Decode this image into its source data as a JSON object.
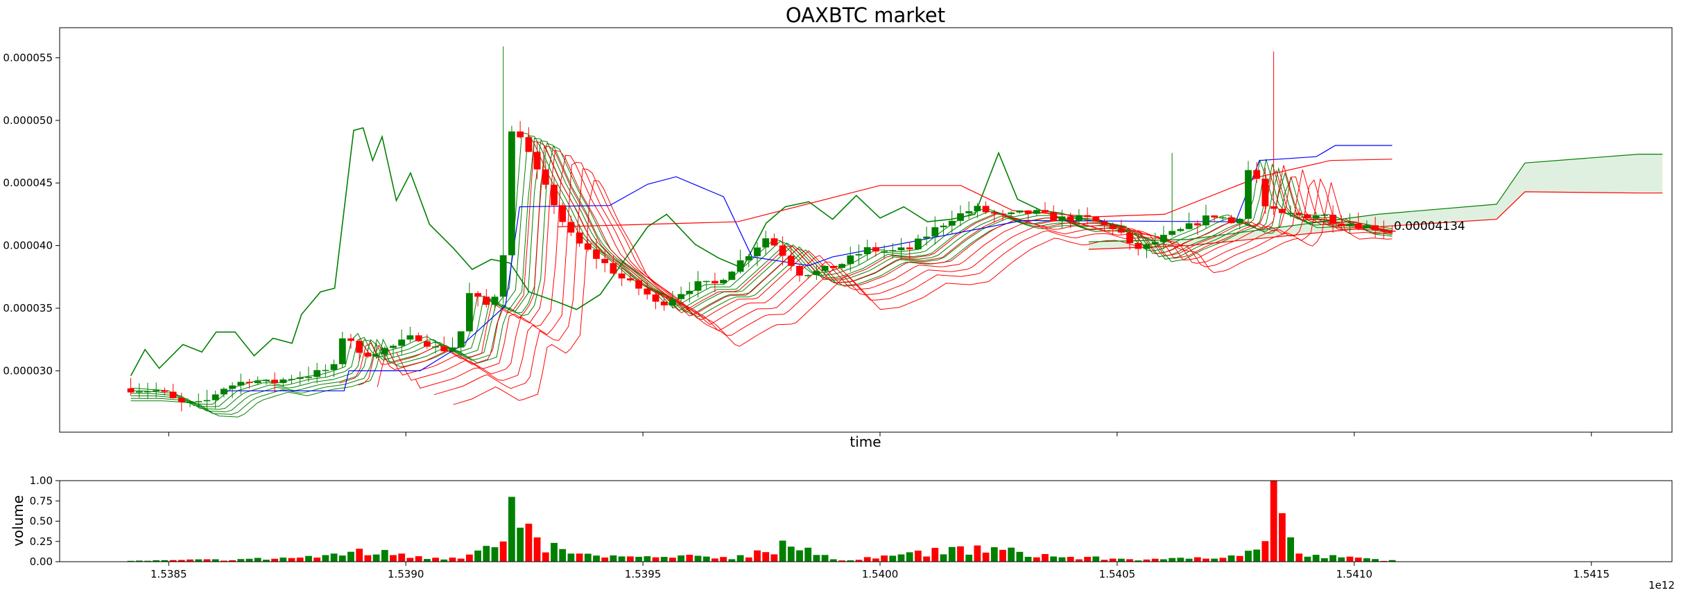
{
  "chart_data": [
    {
      "type": "candlestick",
      "title": "OAXBTC market",
      "xlabel": "time",
      "ylabel": "",
      "xlim": [
        1538270000000.0,
        1541670000000.0
      ],
      "ylim": [
        2.51e-05,
        5.74e-05
      ],
      "x_ticks": [
        1538500000000.0,
        1539000000000.0,
        1539500000000.0,
        1540000000000.0,
        1540500000000.0,
        1541000000000.0,
        1541500000000.0
      ],
      "x_tick_labels": [
        "1.5385",
        "1.5390",
        "1.5395",
        "1.5400",
        "1.5405",
        "1.5410",
        "1.5415"
      ],
      "x_offset_label": "1e12",
      "y_ticks": [
        3e-05,
        3.5e-05,
        4e-05,
        4.5e-05,
        5e-05,
        5.5e-05
      ],
      "y_tick_labels": [
        "0.000030",
        "0.000035",
        "0.000040",
        "0.000045",
        "0.000050",
        "0.000055"
      ],
      "last_price_label": "0.00004134",
      "grid": false,
      "candle_colors": {
        "up": "#008000",
        "down": "#ff0000"
      },
      "price_keypoints": [
        [
          1538420000000.0,
          2.86e-05
        ],
        [
          1538490000000.0,
          2.84e-05
        ],
        [
          1538530000000.0,
          2.74e-05
        ],
        [
          1538580000000.0,
          2.73e-05
        ],
        [
          1538620000000.0,
          2.86e-05
        ],
        [
          1538680000000.0,
          2.93e-05
        ],
        [
          1538720000000.0,
          2.9e-05
        ],
        [
          1538770000000.0,
          2.95e-05
        ],
        [
          1538810000000.0,
          2.97e-05
        ],
        [
          1538860000000.0,
          3.03e-05
        ],
        [
          1538880000000.0,
          3.35e-05
        ],
        [
          1538910000000.0,
          3.12e-05
        ],
        [
          1538980000000.0,
          3.19e-05
        ],
        [
          1539030000000.0,
          3.28e-05
        ],
        [
          1539080000000.0,
          3.16e-05
        ],
        [
          1539120000000.0,
          3.21e-05
        ],
        [
          1539140000000.0,
          3.62e-05
        ],
        [
          1539180000000.0,
          3.52e-05
        ],
        [
          1539210000000.0,
          3.68e-05
        ],
        [
          1539230000000.0,
          4.9e-05
        ],
        [
          1539250000000.0,
          4.89e-05
        ],
        [
          1539290000000.0,
          4.55e-05
        ],
        [
          1539320000000.0,
          4.35e-05
        ],
        [
          1539350000000.0,
          4.11e-05
        ],
        [
          1539380000000.0,
          3.99e-05
        ],
        [
          1539420000000.0,
          3.88e-05
        ],
        [
          1539470000000.0,
          3.72e-05
        ],
        [
          1539510000000.0,
          3.64e-05
        ],
        [
          1539540000000.0,
          3.52e-05
        ],
        [
          1539580000000.0,
          3.61e-05
        ],
        [
          1539620000000.0,
          3.69e-05
        ],
        [
          1539660000000.0,
          3.69e-05
        ],
        [
          1539730000000.0,
          3.93e-05
        ],
        [
          1539770000000.0,
          4.07e-05
        ],
        [
          1539800000000.0,
          3.95e-05
        ],
        [
          1539840000000.0,
          3.78e-05
        ],
        [
          1539880000000.0,
          3.79e-05
        ],
        [
          1539930000000.0,
          3.86e-05
        ],
        [
          1539980000000.0,
          3.97e-05
        ],
        [
          1540030000000.0,
          3.95e-05
        ],
        [
          1540070000000.0,
          3.97e-05
        ],
        [
          1540120000000.0,
          4.12e-05
        ],
        [
          1540160000000.0,
          4.22e-05
        ],
        [
          1540210000000.0,
          4.3e-05
        ],
        [
          1540240000000.0,
          4.26e-05
        ],
        [
          1540270000000.0,
          4.23e-05
        ],
        [
          1540310000000.0,
          4.26e-05
        ],
        [
          1540340000000.0,
          4.26e-05
        ],
        [
          1540380000000.0,
          4.21e-05
        ],
        [
          1540410000000.0,
          4.22e-05
        ],
        [
          1540450000000.0,
          4.21e-05
        ],
        [
          1540480000000.0,
          4.16e-05
        ],
        [
          1540510000000.0,
          4.14e-05
        ],
        [
          1540540000000.0,
          3.97e-05
        ],
        [
          1540570000000.0,
          3.99e-05
        ],
        [
          1540610000000.0,
          4.07e-05
        ],
        [
          1540650000000.0,
          4.13e-05
        ],
        [
          1540690000000.0,
          4.21e-05
        ],
        [
          1540720000000.0,
          4.25e-05
        ],
        [
          1540750000000.0,
          4.18e-05
        ],
        [
          1540770000000.0,
          4.25e-05
        ],
        [
          1540790000000.0,
          4.71e-05
        ],
        [
          1540820000000.0,
          4.31e-05
        ],
        [
          1540850000000.0,
          4.24e-05
        ],
        [
          1540880000000.0,
          4.25e-05
        ],
        [
          1540910000000.0,
          4.24e-05
        ],
        [
          1540940000000.0,
          4.25e-05
        ],
        [
          1540970000000.0,
          4.19e-05
        ],
        [
          1541000000000.0,
          4.18e-05
        ],
        [
          1541040000000.0,
          4.15e-05
        ],
        [
          1541080000000.0,
          4.13e-05
        ]
      ],
      "candle_range": [
        1538420000000.0,
        1541080000000.0
      ],
      "candle_count": 150,
      "spikes": [
        {
          "x": 1539200000000.0,
          "high": 5.59e-05
        },
        {
          "x": 1540830000000.0,
          "high": 5.55e-05
        },
        {
          "x": 1540620000000.0,
          "high": 4.74e-05
        }
      ],
      "series": [
        {
          "color": "#008000",
          "kind": "indicator",
          "points": [
            [
              1538420000000.0,
              2.96e-05
            ],
            [
              1538450000000.0,
              3.17e-05
            ],
            [
              1538480000000.0,
              3.02e-05
            ],
            [
              1538530000000.0,
              3.21e-05
            ],
            [
              1538570000000.0,
              3.15e-05
            ],
            [
              1538600000000.0,
              3.31e-05
            ],
            [
              1538640000000.0,
              3.31e-05
            ],
            [
              1538680000000.0,
              3.12e-05
            ],
            [
              1538720000000.0,
              3.26e-05
            ],
            [
              1538760000000.0,
              3.22e-05
            ],
            [
              1538780000000.0,
              3.45e-05
            ],
            [
              1538820000000.0,
              3.63e-05
            ],
            [
              1538850000000.0,
              3.66e-05
            ],
            [
              1538890000000.0,
              4.92e-05
            ],
            [
              1538910000000.0,
              4.94e-05
            ],
            [
              1538930000000.0,
              4.68e-05
            ],
            [
              1538950000000.0,
              4.87e-05
            ],
            [
              1538980000000.0,
              4.36e-05
            ],
            [
              1539010000000.0,
              4.58e-05
            ],
            [
              1539050000000.0,
              4.17e-05
            ],
            [
              1539100000000.0,
              3.98e-05
            ],
            [
              1539140000000.0,
              3.81e-05
            ],
            [
              1539180000000.0,
              3.89e-05
            ],
            [
              1539220000000.0,
              3.86e-05
            ],
            [
              1539260000000.0,
              3.63e-05
            ],
            [
              1539320000000.0,
              3.55e-05
            ],
            [
              1539360000000.0,
              3.49e-05
            ],
            [
              1539410000000.0,
              3.61e-05
            ],
            [
              1539460000000.0,
              3.88e-05
            ],
            [
              1539510000000.0,
              4.15e-05
            ],
            [
              1539550000000.0,
              4.25e-05
            ],
            [
              1539610000000.0,
              4.01e-05
            ],
            [
              1539660000000.0,
              3.9e-05
            ],
            [
              1539710000000.0,
              3.82e-05
            ],
            [
              1539760000000.0,
              4.18e-05
            ],
            [
              1539800000000.0,
              4.31e-05
            ],
            [
              1539850000000.0,
              4.35e-05
            ],
            [
              1539900000000.0,
              4.21e-05
            ],
            [
              1539950000000.0,
              4.4e-05
            ],
            [
              1540000000000.0,
              4.22e-05
            ],
            [
              1540050000000.0,
              4.31e-05
            ],
            [
              1540100000000.0,
              4.19e-05
            ],
            [
              1540150000000.0,
              4.21e-05
            ],
            [
              1540200000000.0,
              4.25e-05
            ],
            [
              1540250000000.0,
              4.74e-05
            ],
            [
              1540290000000.0,
              4.37e-05
            ],
            [
              1540340000000.0,
              4.28e-05
            ],
            [
              1540380000000.0,
              4.26e-05
            ],
            [
              1540430000000.0,
              4.21e-05
            ],
            [
              1540480000000.0,
              4.18e-05
            ],
            [
              1540520000000.0,
              4.15e-05
            ]
          ]
        },
        {
          "color": "#0000ff",
          "kind": "donchian-upper",
          "points": [
            [
              1538620000000.0,
              2.84e-05
            ],
            [
              1538870000000.0,
              2.84e-05
            ],
            [
              1538880000000.0,
              3e-05
            ],
            [
              1539030000000.0,
              3e-05
            ],
            [
              1539120000000.0,
              3.21e-05
            ],
            [
              1539210000000.0,
              3.52e-05
            ],
            [
              1539240000000.0,
              4.31e-05
            ],
            [
              1539430000000.0,
              4.32e-05
            ],
            [
              1539510000000.0,
              4.49e-05
            ],
            [
              1539570000000.0,
              4.55e-05
            ],
            [
              1539670000000.0,
              4.39e-05
            ],
            [
              1539730000000.0,
              3.91e-05
            ],
            [
              1539850000000.0,
              3.84e-05
            ],
            [
              1539900000000.0,
              3.91e-05
            ],
            [
              1540300000000.0,
              4.2e-05
            ],
            [
              1540750000000.0,
              4.19e-05
            ],
            [
              1540800000000.0,
              4.68e-05
            ],
            [
              1540920000000.0,
              4.71e-05
            ],
            [
              1540960000000.0,
              4.8e-05
            ],
            [
              1541080000000.0,
              4.8e-05
            ]
          ]
        },
        {
          "color": "#ff0000",
          "kind": "upper-band",
          "points": [
            [
              1539320000000.0,
              4.15e-05
            ],
            [
              1539700000000.0,
              4.19e-05
            ],
            [
              1540000000000.0,
              4.48e-05
            ],
            [
              1540170000000.0,
              4.48e-05
            ],
            [
              1540280000000.0,
              4.28e-05
            ],
            [
              1540450000000.0,
              4.23e-05
            ],
            [
              1540600000000.0,
              4.25e-05
            ],
            [
              1540800000000.0,
              4.55e-05
            ],
            [
              1540950000000.0,
              4.68e-05
            ],
            [
              1541080000000.0,
              4.69e-05
            ]
          ]
        },
        {
          "color": "#008000",
          "kind": "cloud-upper",
          "points": [
            [
              1540440000000.0,
              4.03e-05
            ],
            [
              1540650000000.0,
              4.05e-05
            ],
            [
              1541050000000.0,
              4.25e-05
            ],
            [
              1541300000000.0,
              4.33e-05
            ],
            [
              1541360000000.0,
              4.66e-05
            ],
            [
              1541600000000.0,
              4.73e-05
            ],
            [
              1541650000000.0,
              4.73e-05
            ]
          ]
        },
        {
          "color": "#ff0000",
          "kind": "cloud-lower",
          "points": [
            [
              1540440000000.0,
              3.97e-05
            ],
            [
              1540650000000.0,
              4e-05
            ],
            [
              1541050000000.0,
              4.15e-05
            ],
            [
              1541300000000.0,
              4.21e-05
            ],
            [
              1541360000000.0,
              4.43e-05
            ],
            [
              1541600000000.0,
              4.42e-05
            ],
            [
              1541650000000.0,
              4.42e-05
            ]
          ]
        }
      ]
    },
    {
      "type": "bar",
      "title": "",
      "xlabel": "",
      "ylabel": "volume",
      "ylim": [
        0,
        1
      ],
      "y_ticks": [
        0,
        0.25,
        0.5,
        0.75,
        1
      ],
      "y_tick_labels": [
        "0.00",
        "0.25",
        "0.50",
        "0.75",
        "1.00"
      ],
      "volume_keypoints": [
        [
          1538420000000.0,
          0.01
        ],
        [
          1538600000000.0,
          0.03
        ],
        [
          1538750000000.0,
          0.05
        ],
        [
          1538850000000.0,
          0.1
        ],
        [
          1538900000000.0,
          0.16
        ],
        [
          1539000000000.0,
          0.1
        ],
        [
          1539100000000.0,
          0.05
        ],
        [
          1539200000000.0,
          0.25
        ],
        [
          1539220000000.0,
          0.8
        ],
        [
          1539250000000.0,
          0.42
        ],
        [
          1539280000000.0,
          0.3
        ],
        [
          1539350000000.0,
          0.1
        ],
        [
          1539500000000.0,
          0.06
        ],
        [
          1539700000000.0,
          0.08
        ],
        [
          1539800000000.0,
          0.26
        ],
        [
          1539900000000.0,
          0.03
        ],
        [
          1540050000000.0,
          0.09
        ],
        [
          1540200000000.0,
          0.2
        ],
        [
          1540400000000.0,
          0.06
        ],
        [
          1540600000000.0,
          0.03
        ],
        [
          1540800000000.0,
          0.15
        ],
        [
          1540830000000.0,
          1.0
        ],
        [
          1540880000000.0,
          0.1
        ],
        [
          1541000000000.0,
          0.05
        ],
        [
          1541080000000.0,
          0.02
        ]
      ]
    }
  ]
}
